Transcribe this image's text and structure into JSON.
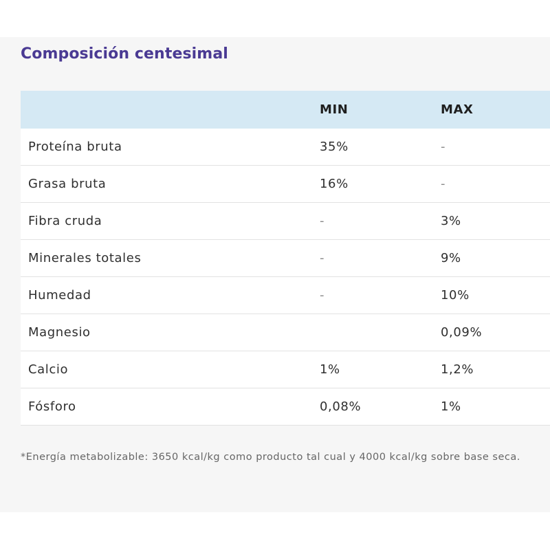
{
  "section": {
    "title": "Composición centesimal"
  },
  "table": {
    "headers": [
      "",
      "MIN",
      "MAX"
    ],
    "rows": [
      {
        "name": "Proteína bruta",
        "min": "35%",
        "max": "-"
      },
      {
        "name": "Grasa bruta",
        "min": "16%",
        "max": "-"
      },
      {
        "name": "Fibra cruda",
        "min": "-",
        "max": "3%"
      },
      {
        "name": "Minerales totales",
        "min": "-",
        "max": "9%"
      },
      {
        "name": "Humedad",
        "min": "-",
        "max": "10%"
      },
      {
        "name": "Magnesio",
        "min": "",
        "max": "0,09%"
      },
      {
        "name": "Calcio",
        "min": "1%",
        "max": "1,2%"
      },
      {
        "name": "Fósforo",
        "min": "0,08%",
        "max": "1%"
      }
    ]
  },
  "footnote": "*Energía metabolizable: 3650 kcal/kg como producto tal cual y 4000 kcal/kg sobre base seca.",
  "colors": {
    "title": "#4a3a93",
    "header_bg": "#d5e9f4",
    "panel_bg": "#f6f6f6"
  }
}
